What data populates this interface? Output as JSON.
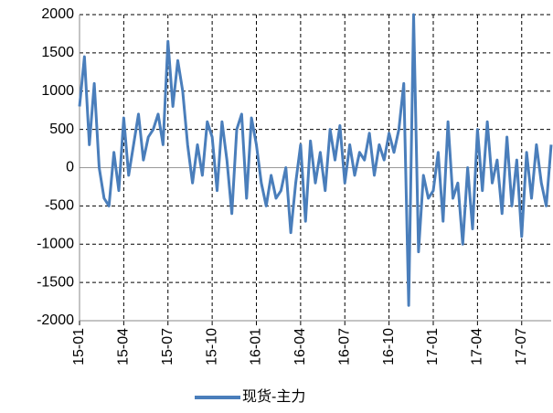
{
  "chart_data": {
    "type": "line",
    "categories": [
      "15-01",
      null,
      null,
      null,
      null,
      null,
      null,
      null,
      null,
      "15-04",
      null,
      null,
      null,
      null,
      null,
      null,
      null,
      null,
      "15-07",
      null,
      null,
      null,
      null,
      null,
      null,
      null,
      null,
      "15-10",
      null,
      null,
      null,
      null,
      null,
      null,
      null,
      null,
      "16-01",
      null,
      null,
      null,
      null,
      null,
      null,
      null,
      null,
      "16-04",
      null,
      null,
      null,
      null,
      null,
      null,
      null,
      null,
      "16-07",
      null,
      null,
      null,
      null,
      null,
      null,
      null,
      null,
      "16-10",
      null,
      null,
      null,
      null,
      null,
      null,
      null,
      null,
      "17-01",
      null,
      null,
      null,
      null,
      null,
      null,
      null,
      null,
      "17-04",
      null,
      null,
      null,
      null,
      null,
      null,
      null,
      null,
      "17-07",
      null,
      null,
      null,
      null,
      null,
      null
    ],
    "series": [
      {
        "name": "现货-主力",
        "color": "#4a7ebb",
        "values": [
          800,
          1450,
          300,
          1100,
          0,
          -400,
          -500,
          200,
          -300,
          650,
          -100,
          300,
          700,
          100,
          400,
          500,
          700,
          300,
          1650,
          800,
          1400,
          1000,
          300,
          -200,
          300,
          -100,
          600,
          400,
          -300,
          600,
          100,
          -600,
          500,
          700,
          -400,
          650,
          300,
          -200,
          -500,
          -100,
          -400,
          -300,
          0,
          -850,
          -200,
          300,
          -700,
          350,
          -200,
          200,
          -300,
          500,
          100,
          550,
          -200,
          300,
          -100,
          200,
          100,
          450,
          -100,
          300,
          100,
          450,
          200,
          500,
          1100,
          -1800,
          2000,
          -1100,
          -100,
          -400,
          -300,
          200,
          -700,
          600,
          -400,
          -200,
          -1000,
          0,
          -800,
          500,
          -300,
          600,
          -200,
          100,
          -600,
          400,
          -500,
          100,
          -900,
          200,
          -400,
          300,
          -200,
          -500,
          300
        ]
      }
    ],
    "ylim": [
      -2000,
      2000
    ],
    "yticks": [
      -2000,
      -1500,
      -1000,
      -500,
      0,
      500,
      1000,
      1500,
      2000
    ],
    "grid": true
  }
}
